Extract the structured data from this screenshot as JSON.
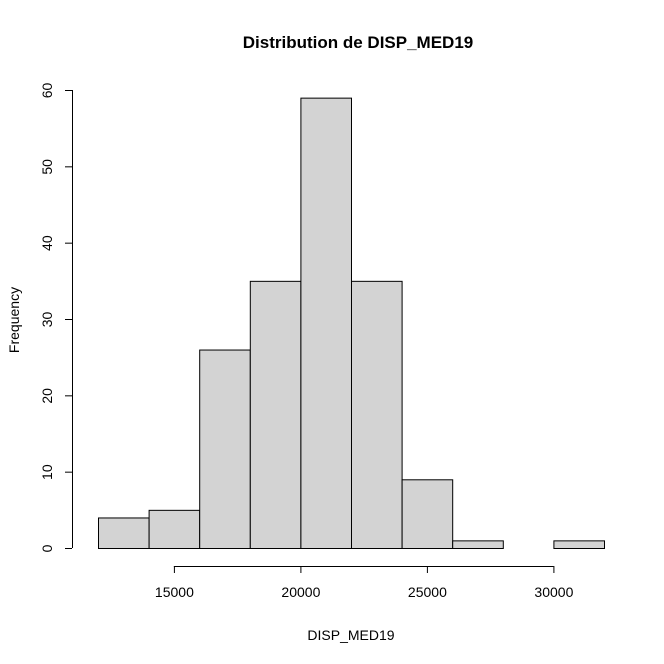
{
  "chart_data": {
    "type": "bar",
    "title": "Distribution de DISP_MED19",
    "xlabel": "DISP_MED19",
    "ylabel": "Frequency",
    "bins": [
      {
        "start": 12000,
        "end": 14000,
        "count": 4
      },
      {
        "start": 14000,
        "end": 16000,
        "count": 5
      },
      {
        "start": 16000,
        "end": 18000,
        "count": 26
      },
      {
        "start": 18000,
        "end": 20000,
        "count": 35
      },
      {
        "start": 20000,
        "end": 22000,
        "count": 59
      },
      {
        "start": 22000,
        "end": 24000,
        "count": 35
      },
      {
        "start": 24000,
        "end": 26000,
        "count": 9
      },
      {
        "start": 26000,
        "end": 28000,
        "count": 1
      },
      {
        "start": 28000,
        "end": 30000,
        "count": 0
      },
      {
        "start": 30000,
        "end": 32000,
        "count": 1
      }
    ],
    "xticks": [
      15000,
      20000,
      25000,
      30000
    ],
    "yticks": [
      0,
      10,
      20,
      30,
      40,
      50,
      60
    ],
    "xlim": [
      12000,
      32000
    ],
    "ylim": [
      0,
      60
    ],
    "colors": {
      "bar_fill": "#d3d3d3",
      "bar_stroke": "#000000"
    },
    "grid": false
  }
}
